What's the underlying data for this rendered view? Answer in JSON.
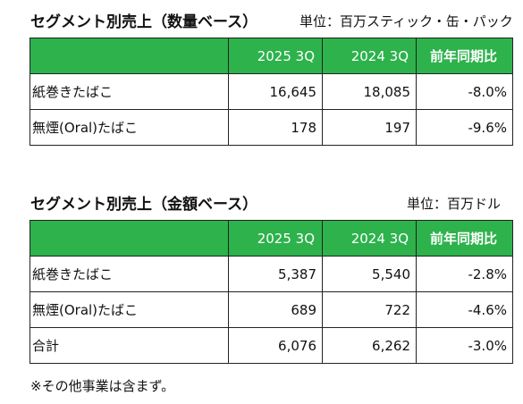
{
  "volume": {
    "title": "セグメント別売上（数量ベース）",
    "unit": "単位：百万スティック・缶・パック",
    "headers": [
      "",
      "2025 3Q",
      "2024 3Q",
      "前年同期比"
    ],
    "rows": [
      {
        "label": "紙巻きたばこ",
        "v2025": "16,645",
        "v2024": "18,085",
        "yoy": "-8.0%"
      },
      {
        "label": "無煙(Oral)たばこ",
        "v2025": "178",
        "v2024": "197",
        "yoy": "-9.6%"
      }
    ]
  },
  "amount": {
    "title": "セグメント別売上（金額ベース）",
    "unit": "単位：百万ドル",
    "headers": [
      "",
      "2025 3Q",
      "2024 3Q",
      "前年同期比"
    ],
    "rows": [
      {
        "label": "紙巻きたばこ",
        "v2025": "5,387",
        "v2024": "5,540",
        "yoy": "-2.8%"
      },
      {
        "label": "無煙(Oral)たばこ",
        "v2025": "689",
        "v2024": "722",
        "yoy": "-4.6%"
      },
      {
        "label": "合計",
        "v2025": "6,076",
        "v2024": "6,262",
        "yoy": "-3.0%"
      }
    ]
  },
  "note": "※その他事業は含まず。",
  "colors": {
    "header_bg": "#2db24c",
    "header_text": "#ffffff",
    "border": "#222222"
  }
}
